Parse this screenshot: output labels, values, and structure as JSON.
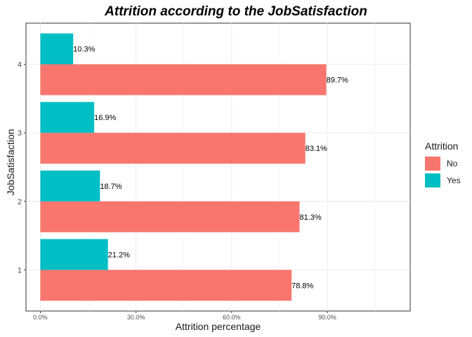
{
  "chart_data": {
    "type": "bar",
    "orientation": "horizontal",
    "title": "Attrition according to the JobSatisfaction",
    "xlabel": "Attrition percentage",
    "ylabel": "JobSatisfaction",
    "categories": [
      "1",
      "2",
      "3",
      "4"
    ],
    "series": [
      {
        "name": "No",
        "color": "#F8766D",
        "values": [
          78.8,
          81.3,
          83.1,
          89.7
        ],
        "labels": [
          "78.8%",
          "81.3%",
          "83.1%",
          "89.7%"
        ]
      },
      {
        "name": "Yes",
        "color": "#00BFC4",
        "values": [
          21.2,
          18.7,
          16.9,
          10.3
        ],
        "labels": [
          "21.2%",
          "18.7%",
          "16.9%",
          "10.3%"
        ]
      }
    ],
    "xlim": [
      -4.5,
      116
    ],
    "xticks": [
      0,
      30,
      60,
      90
    ],
    "xtick_labels": [
      "0.0%",
      "30.0%",
      "60.0%",
      "90.0%"
    ],
    "legend": {
      "title": "Attrition",
      "position": "right"
    },
    "grid": true
  }
}
